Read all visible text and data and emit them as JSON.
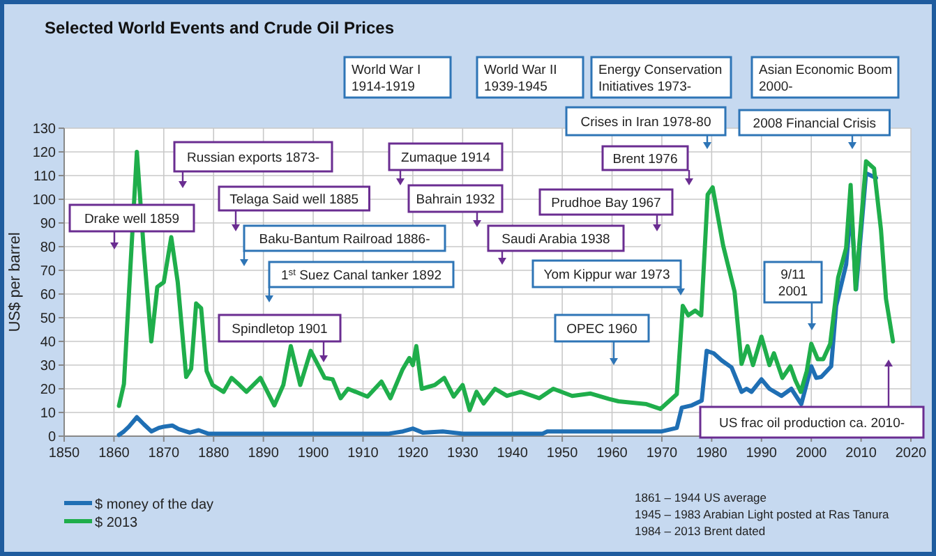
{
  "chart_data": {
    "type": "line",
    "title": "Selected World Events and Crude Oil Prices",
    "ylabel": "US$ per barrel",
    "xlim": [
      1850,
      2020
    ],
    "xticks": [
      1850,
      1860,
      1870,
      1880,
      1890,
      1900,
      1910,
      1920,
      1930,
      1940,
      1950,
      1960,
      1970,
      1980,
      1990,
      2000,
      2010,
      2020
    ],
    "ylim": [
      0,
      130
    ],
    "yticks": [
      0,
      10,
      20,
      30,
      40,
      50,
      60,
      70,
      80,
      90,
      100,
      110,
      120,
      130
    ],
    "grid": true,
    "legend": "bottom left",
    "line_style": "solid",
    "marker": "none",
    "series": [
      {
        "name": "$ money of the day",
        "color": "#1f6fb4",
        "x": [
          1861,
          1862,
          1863,
          1864.6,
          1866,
          1867.5,
          1869,
          1870,
          1871.7,
          1873,
          1875.2,
          1877,
          1879,
          1885,
          1890,
          1895,
          1900,
          1905,
          1910,
          1915,
          1918,
          1920,
          1922,
          1926,
          1930,
          1935,
          1940,
          1946,
          1947,
          1950,
          1955,
          1960,
          1965,
          1970,
          1973,
          1974,
          1976,
          1978,
          1979,
          1980.4,
          1982,
          1984,
          1986,
          1987,
          1988,
          1990,
          1991.6,
          1994,
          1996,
          1998,
          2000,
          2001,
          2002,
          2004,
          2005,
          2007,
          2008,
          2009,
          2011,
          2012,
          2013
        ],
        "values": [
          0.5,
          2,
          4,
          8,
          5,
          2,
          3.5,
          4,
          4.5,
          3,
          1.5,
          2.5,
          1,
          1,
          1,
          1,
          1,
          1,
          1,
          1,
          2,
          3.2,
          1.5,
          2,
          1,
          1,
          1,
          1,
          2,
          2,
          2,
          2,
          2,
          2,
          3.5,
          12,
          13,
          15,
          36,
          35,
          32,
          29,
          18.7,
          20,
          18.7,
          24,
          20,
          17,
          20,
          13.5,
          29.5,
          24.6,
          25,
          29.5,
          55,
          72.5,
          97,
          62,
          111,
          110,
          109
        ]
      },
      {
        "name": "$ 2013",
        "color": "#1fae4b",
        "x": [
          1861,
          1862,
          1863,
          1864.6,
          1866,
          1867.5,
          1868.7,
          1870,
          1871.5,
          1872.8,
          1874.5,
          1875.5,
          1876.5,
          1877.5,
          1878.6,
          1879.8,
          1882,
          1883.6,
          1885.2,
          1886.6,
          1889.4,
          1892.2,
          1894,
          1895.5,
          1897.4,
          1899.5,
          1902.3,
          1903.9,
          1905.5,
          1907,
          1910.9,
          1913.7,
          1915.5,
          1917.9,
          1919.3,
          1920,
          1920.7,
          1921.8,
          1924.4,
          1926.3,
          1928.2,
          1930,
          1931.4,
          1932.8,
          1934.2,
          1936.5,
          1938.9,
          1941.7,
          1945.4,
          1948.2,
          1952,
          1955.7,
          1959.4,
          1961.3,
          1966.9,
          1969.7,
          1973,
          1974.2,
          1975.3,
          1976.7,
          1977.9,
          1979.2,
          1980.2,
          1982.3,
          1984.6,
          1986,
          1987.2,
          1988.3,
          1990,
          1991.6,
          1992.5,
          1994.2,
          1995.8,
          1996.8,
          1997.9,
          1999.1,
          2000,
          2001.3,
          2002.4,
          2003.8,
          2005.4,
          2007,
          2007.9,
          2008.9,
          2011,
          2012.6,
          2014,
          2015,
          2016.4
        ],
        "values": [
          12.8,
          22,
          60,
          120,
          78,
          40,
          63,
          65,
          84,
          65,
          25,
          28.5,
          56,
          54,
          27.5,
          21.6,
          18.7,
          24.6,
          21.6,
          18.7,
          24.6,
          13,
          21.6,
          38,
          21.6,
          36,
          24.6,
          24,
          16,
          20,
          16.7,
          23,
          16,
          28,
          33,
          30,
          38,
          20,
          21.6,
          24.6,
          16.7,
          21.6,
          11,
          18.7,
          13.8,
          20,
          17,
          18.7,
          16,
          20,
          17,
          18,
          15.7,
          14.7,
          13.5,
          11.5,
          17.7,
          55,
          51,
          53,
          51,
          102,
          105,
          80.5,
          61,
          30.5,
          38,
          30,
          42,
          30,
          35,
          24.6,
          29.5,
          23.6,
          18.7,
          27.5,
          39,
          32.5,
          32.5,
          39,
          67,
          79.5,
          106,
          62,
          116,
          113,
          87,
          58,
          40
        ]
      }
    ],
    "annotations": [
      "Drake well 1859",
      "Russian exports 1873-",
      "Telaga Said well 1885",
      "Baku-Bantum Railroad 1886-",
      "1$^{st}$ Suez Canal tanker 1892",
      "Spindletop 1901",
      "Zumaque 1914",
      "Bahrain 1932",
      "Saudi Arabia 1938",
      "Prudhoe Bay 1967",
      "Brent 1976",
      "Yom Kippur war 1973",
      "OPEC 1960",
      "Crises in Iran 1978-80",
      "2008 Financial Crisis",
      "9/11\n2001",
      "US frac oil production ca. 2010-",
      "World War I\n1914-1919",
      "World War II\n1939-1945",
      "Energy Conservation\nInitiatives 1973-",
      "Asian Economic Boom\n2000-",
      "1861 – 1944  US average",
      "1945 – 1983  Arabian Light posted at Ras Tanura",
      "1984 – 2013  Brent dated"
    ]
  }
}
